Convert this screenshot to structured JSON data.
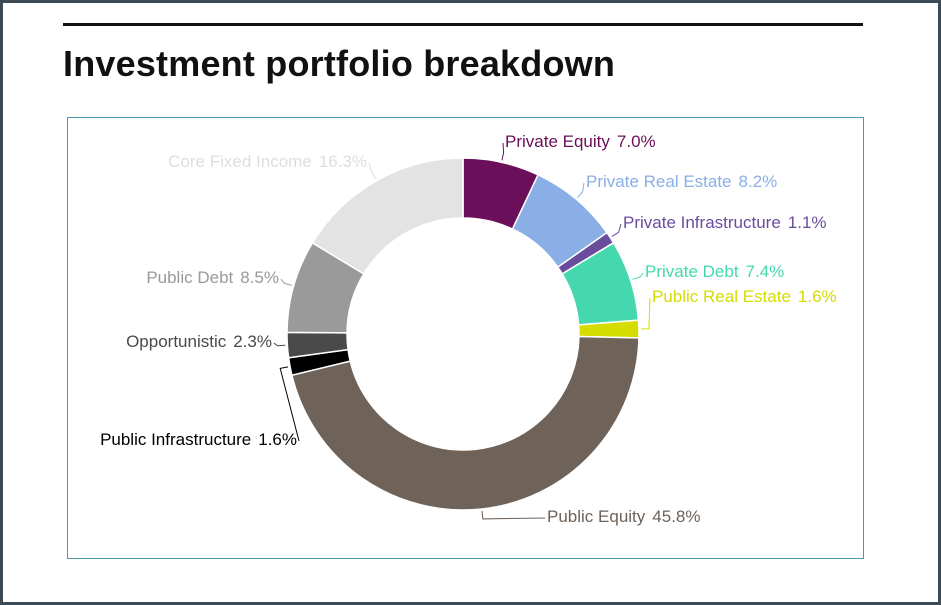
{
  "title": "Investment portfolio breakdown",
  "chart_data": {
    "type": "donut",
    "categories": [
      "Private Equity",
      "Private Real Estate",
      "Private Infrastructure",
      "Private Debt",
      "Public Real Estate",
      "Public Equity",
      "Public Infrastructure",
      "Opportunistic",
      "Public Debt",
      "Core Fixed Income"
    ],
    "values": [
      7.0,
      8.2,
      1.1,
      7.4,
      1.6,
      45.8,
      1.6,
      2.3,
      8.5,
      16.3
    ],
    "value_labels": [
      "7.0%",
      "8.2%",
      "1.1%",
      "7.4%",
      "1.6%",
      "45.8%",
      "1.6%",
      "2.3%",
      "8.5%",
      "16.3%"
    ],
    "colors": [
      "#6b0f5a",
      "#8aaee6",
      "#6a4c9c",
      "#45d8ae",
      "#d4dc00",
      "#6e6259",
      "#000000",
      "#4a4a4a",
      "#9a9a9a",
      "#e3e3e3"
    ]
  }
}
